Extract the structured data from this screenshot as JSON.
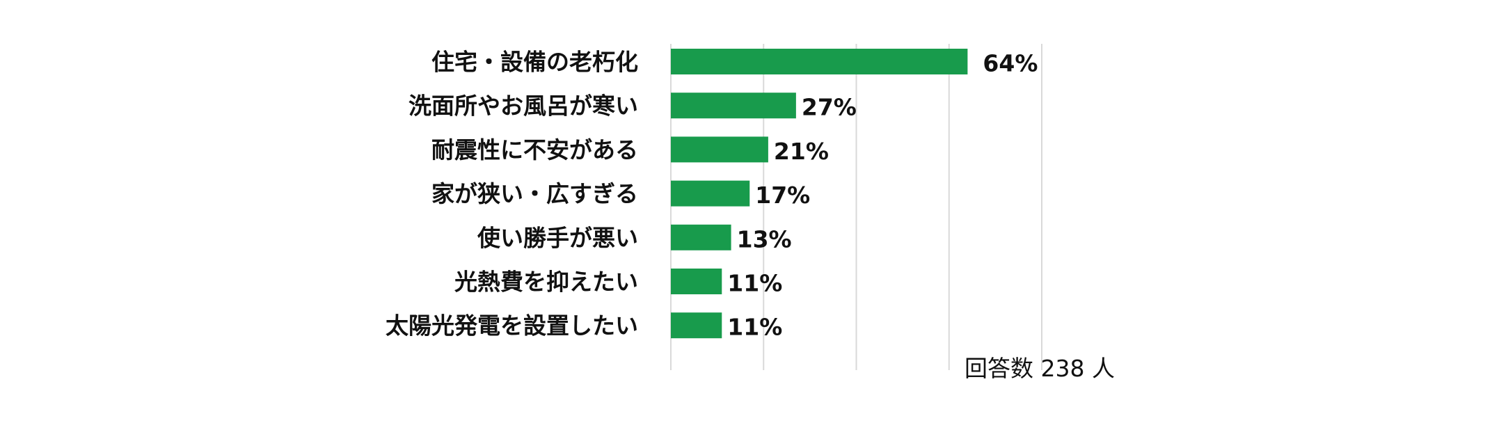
{
  "chart_data": {
    "type": "bar",
    "orientation": "horizontal",
    "categories": [
      "住宅・設備の老朽化",
      "洗面所やお風呂が寒い",
      "耐震性に不安がある",
      "家が狭い・広すぎる",
      "使い勝手が悪い",
      "光熱費を抑えたい",
      "太陽光発電を設置したい"
    ],
    "values": [
      64,
      27,
      21,
      17,
      13,
      11,
      11
    ],
    "value_labels": [
      "64%",
      "27%",
      "21%",
      "17%",
      "13%",
      "11%",
      "11%"
    ],
    "unit": "%",
    "xlim": [
      0,
      80
    ],
    "grid": true,
    "bar_color": "#189b4c",
    "grid_color": "#d9d9d9"
  },
  "note": "回答数 238 人"
}
